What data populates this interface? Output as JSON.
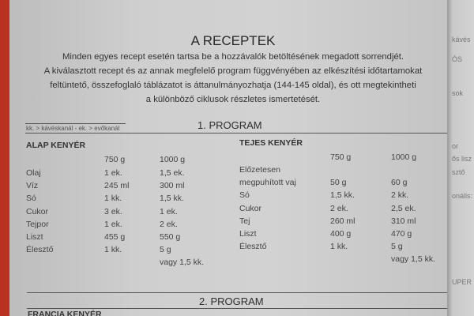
{
  "title": "A RECEPTEK",
  "intro": [
    "Minden egyes recept esetén tartsa be a hozzávalók betöltésének megadott sorrendjét.",
    "A kiválasztott recept és az annak megfelelő program függvényében az elkészítési időtartamokat",
    "feltüntető, összefoglaló táblázatot is áttanulmányozhatja (144-145 oldal), és ott megtekintheti",
    "a különböző ciklusok részletes ismertetését."
  ],
  "legend": "kk. > kávéskanál - ek. > evőkanál",
  "program1": "1. PROGRAM",
  "program2": "2. PROGRAM",
  "left_recipe": {
    "title": "ALAP KENYÉR",
    "cols": [
      "750 g",
      "1000 g"
    ],
    "rows": [
      [
        "Olaj",
        "1 ek.",
        "1,5 ek."
      ],
      [
        "Víz",
        "245 ml",
        "300 ml"
      ],
      [
        "Só",
        "1 kk.",
        "1,5 kk."
      ],
      [
        "Cukor",
        "3 ek.",
        "1 ek."
      ],
      [
        "Tejpor",
        "1 ek.",
        "2 ek."
      ],
      [
        "Liszt",
        "455 g",
        "550 g"
      ],
      [
        "Élesztő",
        "1 kk.",
        "5 g"
      ],
      [
        "",
        "",
        "vagy 1,5 kk."
      ]
    ]
  },
  "right_recipe": {
    "title": "TEJES KENYÉR",
    "cols": [
      "750 g",
      "1000 g"
    ],
    "rows": [
      [
        "Előzetesen",
        "",
        ""
      ],
      [
        "megpuhított vaj",
        "50 g",
        "60 g"
      ],
      [
        "Só",
        "1,5 kk.",
        "2 kk."
      ],
      [
        "Cukor",
        "2 ek.",
        "2,5 ek."
      ],
      [
        "Tej",
        "260 ml",
        "310 ml"
      ],
      [
        "Liszt",
        "400 g",
        "470 g"
      ],
      [
        "Élesztő",
        "1 kk.",
        "5 g"
      ],
      [
        "",
        "",
        "vagy 1,5 kk."
      ]
    ]
  },
  "next_recipe": "FRANCIA KENYÉR",
  "edge_fragments": [
    "kávés",
    "ÓS",
    "sok",
    "or",
    "ős lisz",
    "sztő",
    "onális:",
    "UPER"
  ]
}
